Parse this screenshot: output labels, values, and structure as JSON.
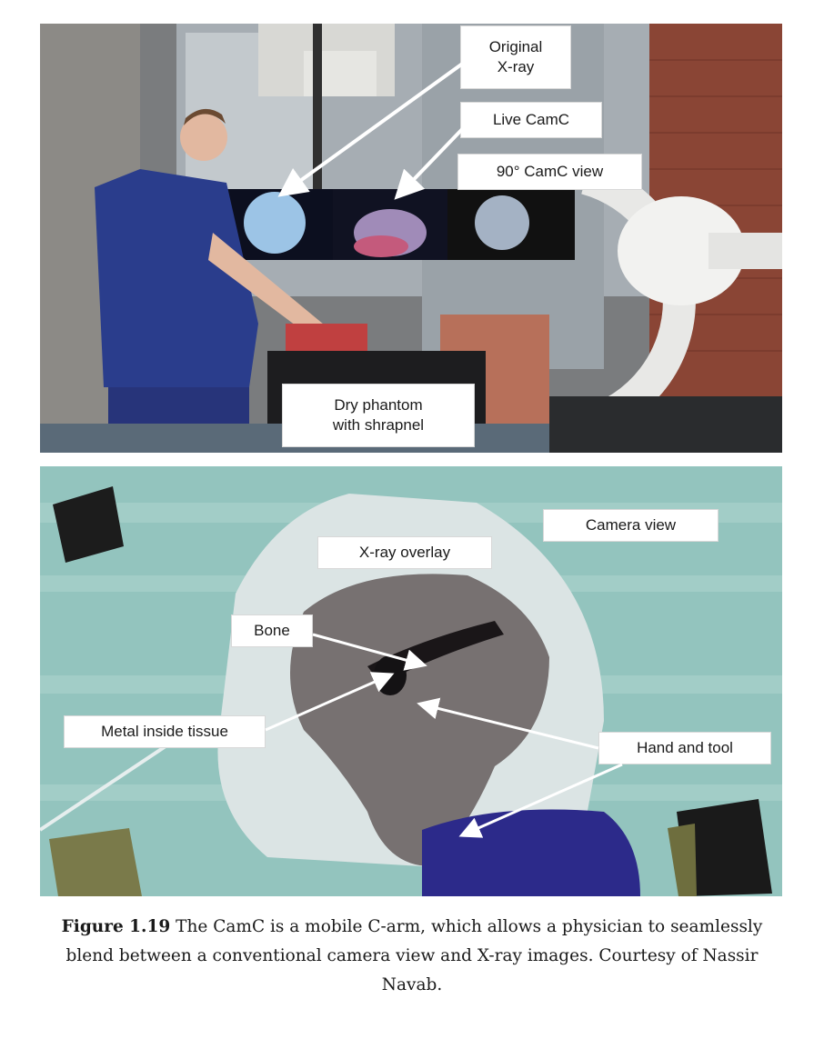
{
  "top_photo": {
    "labels": {
      "original_xray": "Original\nX-ray",
      "live_camc": "Live CamC",
      "camc_90": "90° CamC view",
      "dry_phantom": "Dry phantom\nwith shrapnel"
    }
  },
  "bottom_photo": {
    "labels": {
      "camera_view": "Camera view",
      "xray_overlay": "X-ray overlay",
      "bone": "Bone",
      "metal": "Metal inside tissue",
      "hand_tool": "Hand and tool"
    }
  },
  "caption": {
    "figure_label": "Figure 1.19",
    "text": " The CamC is a mobile C-arm, which allows a physician to seamlessly blend between a conventional camera view and X-ray images. Courtesy of Nassir Navab."
  },
  "colors": {
    "scrub_blue": "#2a3d8c",
    "brick": "#8a4535",
    "drape_teal": "#93c4be"
  }
}
